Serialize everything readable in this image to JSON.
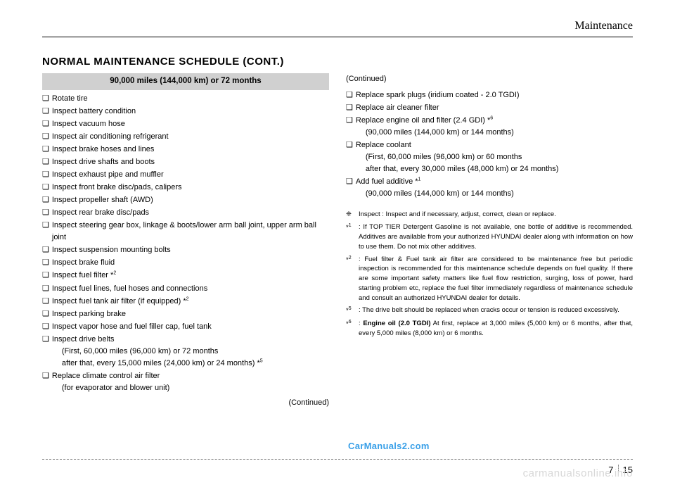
{
  "header": "Maintenance",
  "section_title": "NORMAL MAINTENANCE SCHEDULE (CONT.)",
  "schedule_header": "90,000 miles (144,000 km) or 72 months",
  "left_items": [
    {
      "text": "Rotate tire"
    },
    {
      "text": "Inspect battery condition"
    },
    {
      "text": "Inspect vacuum hose"
    },
    {
      "text": "Inspect air conditioning refrigerant"
    },
    {
      "text": "Inspect brake hoses and lines"
    },
    {
      "text": "Inspect drive shafts and boots"
    },
    {
      "text": "Inspect exhaust pipe and muffler"
    },
    {
      "text": "Inspect front brake disc/pads, calipers"
    },
    {
      "text": "Inspect propeller shaft (AWD)"
    },
    {
      "text": "Inspect rear brake disc/pads"
    },
    {
      "text": "Inspect steering gear box, linkage & boots/lower arm ball joint, upper arm ball joint"
    },
    {
      "text": "Inspect suspension mounting bolts"
    },
    {
      "text": "Inspect brake fluid"
    },
    {
      "text": "Inspect fuel filter *",
      "sup": "2"
    },
    {
      "text": "Inspect fuel lines, fuel hoses and connections"
    },
    {
      "text": "Inspect fuel tank air filter (if equipped) *",
      "sup": "2"
    },
    {
      "text": "Inspect parking brake"
    },
    {
      "text": "Inspect vapor hose and fuel filler cap, fuel tank"
    },
    {
      "text": "Inspect drive belts",
      "sub1": "(First, 60,000 miles (96,000 km) or 72 months",
      "sub2": " after that, every 15,000 miles (24,000 km) or 24 months) *",
      "sub2sup": "5"
    },
    {
      "text": "Replace climate control air filter",
      "sub1": "(for evaporator and blower unit)"
    }
  ],
  "continued_r": "(Continued)",
  "continued_l": "(Continued)",
  "right_items": [
    {
      "text": "Replace spark plugs (iridium coated - 2.0 TGDI)"
    },
    {
      "text": "Replace air cleaner filter"
    },
    {
      "text": "Replace engine oil and filter (2.4 GDI) *",
      "sup": "6",
      "sub1": "(90,000 miles (144,000 km) or 144 months)"
    },
    {
      "text": "Replace coolant",
      "sub1": "(First, 60,000 miles (96,000 km) or 60 months",
      "sub2": " after that, every 30,000 miles (48,000 km) or 24 months)"
    },
    {
      "text": "Add fuel additive *",
      "sup": "1",
      "sub1": "(90,000 miles (144,000 km) or 144 months)"
    }
  ],
  "notes": [
    {
      "sym": "❈",
      "text": "Inspect : Inspect and if necessary, adjust, correct, clean or replace."
    },
    {
      "sym": "*",
      "sup": "1",
      "text": ": If TOP TIER Detergent Gasoline is not available, one bottle of additive is recommended. Additives are available from your authorized HYUNDAI dealer along with information on how to use them. Do not mix other additives."
    },
    {
      "sym": "*",
      "sup": "2",
      "text": ": Fuel filter & Fuel tank air filter are considered to be maintenance free but periodic inspection is recommended for this maintenance schedule depends on fuel quality. If there are some important safety matters like fuel flow restriction, surging, loss of power, hard starting problem etc, replace the fuel filter immediately regardless of maintenance schedule and consult an authorized HYUNDAI dealer for details."
    },
    {
      "sym": "*",
      "sup": "5",
      "text": ": The drive belt should be replaced when cracks occur or tension is reduced excessively."
    },
    {
      "sym": "*",
      "sup": "6",
      "bold_lead": "Engine oil (2.0 TGDI)",
      "text": ": ",
      "tail": " At first, replace at 3,000 miles (5,000 km) or 6 months, after that, every 5,000 miles (8,000 km) or 6 months."
    }
  ],
  "watermark1": "CarManuals2.com",
  "watermark2": "carmanualsonline.info",
  "page_chapter": "7",
  "page_num": "15",
  "bullet": "❑"
}
